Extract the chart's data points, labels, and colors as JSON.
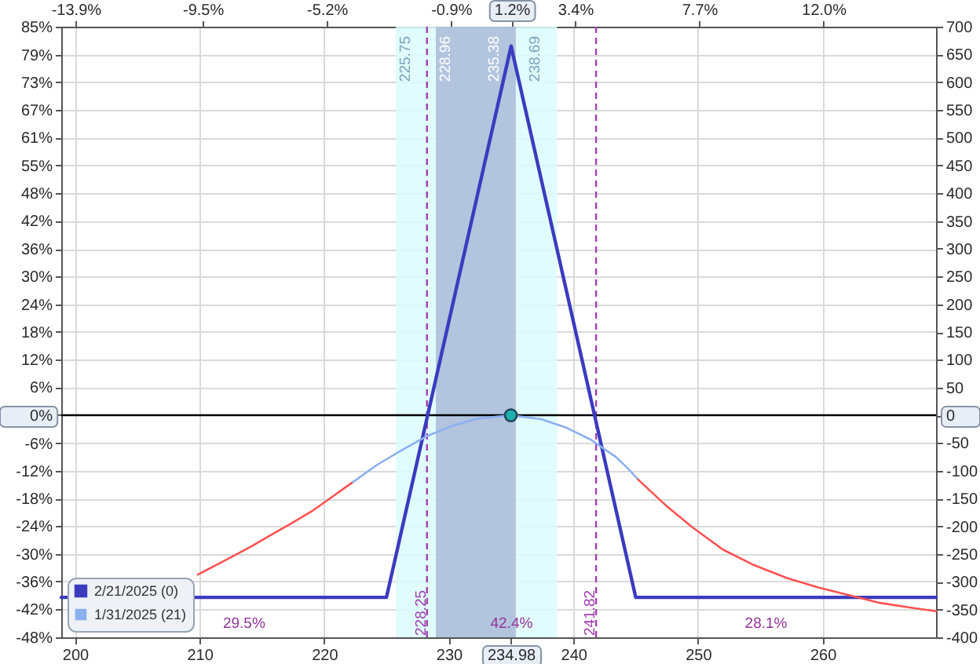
{
  "chart_data": {
    "type": "line",
    "xlim": [
      198.9,
      269.1
    ],
    "xticks": [
      200,
      210,
      220,
      230,
      234.98,
      240,
      250,
      260
    ],
    "x2lim": [
      -14.4,
      15.9
    ],
    "x2ticks": [
      {
        "value": -13.9,
        "label": "-13.9%"
      },
      {
        "value": -9.5,
        "label": "-9.5%"
      },
      {
        "value": -5.2,
        "label": "-5.2%"
      },
      {
        "value": -0.9,
        "label": "-0.9%"
      },
      {
        "value": 1.2,
        "label": "1.2%"
      },
      {
        "value": 3.4,
        "label": "3.4%"
      },
      {
        "value": 7.7,
        "label": "7.7%"
      },
      {
        "value": 12,
        "label": "12.0%"
      }
    ],
    "ylim": [
      -48.5,
      84.8
    ],
    "yticks": [
      {
        "value": 84.8,
        "label": "85%"
      },
      {
        "value": 78.7,
        "label": "79%"
      },
      {
        "value": 72.7,
        "label": "73%"
      },
      {
        "value": 66.6,
        "label": "67%"
      },
      {
        "value": 60.6,
        "label": "61%"
      },
      {
        "value": 54.5,
        "label": "55%"
      },
      {
        "value": 48.5,
        "label": "48%"
      },
      {
        "value": 42.4,
        "label": "42%"
      },
      {
        "value": 36.3,
        "label": "36%"
      },
      {
        "value": 30.3,
        "label": "30%"
      },
      {
        "value": 24.2,
        "label": "24%"
      },
      {
        "value": 18.2,
        "label": "18%"
      },
      {
        "value": 12.1,
        "label": "12%"
      },
      {
        "value": 6.1,
        "label": "6%"
      },
      {
        "value": 0,
        "label": "0%"
      },
      {
        "value": -6.1,
        "label": "-6%"
      },
      {
        "value": -12.1,
        "label": "-12%"
      },
      {
        "value": -18.2,
        "label": "-18%"
      },
      {
        "value": -24.2,
        "label": "-24%"
      },
      {
        "value": -30.3,
        "label": "-30%"
      },
      {
        "value": -36.3,
        "label": "-36%"
      },
      {
        "value": -42.4,
        "label": "-42%"
      },
      {
        "value": -48.5,
        "label": "-48%"
      }
    ],
    "y2lim": [
      -400,
      700
    ],
    "y2ticks": [
      700,
      650,
      600,
      550,
      500,
      450,
      400,
      350,
      300,
      250,
      200,
      150,
      100,
      50,
      0,
      -50,
      -100,
      -150,
      -200,
      -250,
      -300,
      -350,
      -400
    ],
    "grid": true,
    "legend": "bottom left",
    "series": [
      {
        "name": "2/21/2025 (0)",
        "color": "#3b3bbf",
        "axis": "y2",
        "x": [
          198.9,
          225,
          235,
          245,
          269.1
        ],
        "values": [
          -328,
          -328,
          665,
          -328,
          -328
        ]
      },
      {
        "name": "1/31/2025 (21)",
        "color": "#8cb0f0",
        "axis": "y2",
        "x": [
          222.2,
          224.2,
          226.3,
          228.3,
          230.3,
          232.3,
          234.98,
          237.4,
          239.4,
          241.4,
          243.4,
          244.3,
          245.2
        ],
        "values": [
          -122,
          -90,
          -62,
          -37,
          -19,
          -6,
          0,
          -7,
          -22,
          -44,
          -75,
          -94,
          -116
        ]
      },
      {
        "color": "#ff5252",
        "axis": "y2",
        "x": [
          209.85,
          212,
          214.1,
          216,
          217.2,
          219,
          220.2,
          222.2
        ],
        "values": [
          -287,
          -262,
          -237,
          -212,
          -197,
          -173,
          -154,
          -122
        ]
      },
      {
        "color": "#ff5252",
        "axis": "y2",
        "x": [
          245.2,
          247.5,
          249.5,
          252,
          254.5,
          257.1,
          259.6,
          262.1,
          264.6,
          267.2,
          269.1
        ],
        "values": [
          -116,
          -164,
          -201,
          -242,
          -270,
          -293,
          -310,
          -324,
          -338,
          -347,
          -353
        ]
      },
      {
        "type": "scatter",
        "marker": "circle",
        "color": "#1fb0b0",
        "axis": "y2",
        "x": [
          234.98
        ],
        "values": [
          0
        ]
      }
    ],
    "ref_lines": [
      {
        "axis": "y",
        "value": 0,
        "color": "#000000"
      },
      {
        "axis": "x",
        "value": 228.25,
        "label": "228.25",
        "color": "#a040b0",
        "line_style": "dashed"
      },
      {
        "axis": "x",
        "value": 241.82,
        "label": "241.82",
        "color": "#a040b0",
        "line_style": "dashed"
      }
    ],
    "bands": [
      {
        "axis": "x",
        "from": 225.75,
        "to": 238.69,
        "color": "#dcfcfc"
      },
      {
        "axis": "x",
        "from": 228.96,
        "to": 235.38,
        "color": "#aabad9"
      }
    ],
    "annotations": [
      {
        "text": "225.75",
        "x": 225.75
      },
      {
        "text": "228.96",
        "x": 228.96
      },
      {
        "text": "235.38",
        "x": 235.38
      },
      {
        "text": "238.69",
        "x": 238.69
      },
      "29.5%",
      "42.4%",
      "28.1%"
    ]
  }
}
